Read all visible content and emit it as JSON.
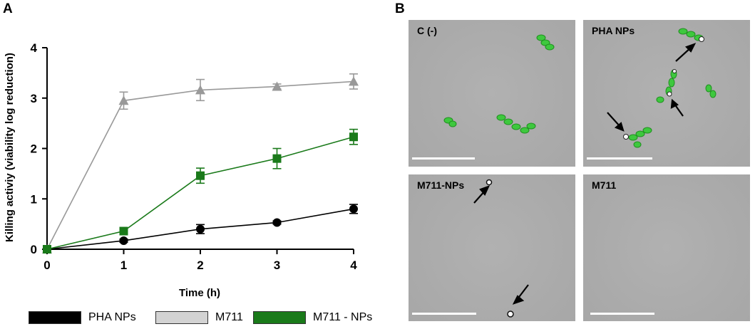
{
  "panels": {
    "a": "A",
    "b": "B"
  },
  "chart_data": {
    "type": "line",
    "xlabel": "Time (h)",
    "ylabel": "Killing activiy (viability log reduction)",
    "xlim": [
      0,
      4
    ],
    "ylim": [
      0,
      4
    ],
    "xticks": [
      "0",
      "1",
      "2",
      "3",
      "4"
    ],
    "yticks": [
      "0",
      "1",
      "2",
      "3",
      "4"
    ],
    "x": [
      0,
      1,
      2,
      3,
      4
    ],
    "grid": false,
    "legend_position": "bottom",
    "series": [
      {
        "name": "PHA NPs",
        "color": "#000000",
        "marker": "circle",
        "values": [
          0,
          0.17,
          0.4,
          0.53,
          0.8
        ],
        "errors": [
          0,
          0.03,
          0.09,
          0.03,
          0.09
        ]
      },
      {
        "name": "M711",
        "color": "#999999",
        "marker": "triangle",
        "values": [
          0,
          2.95,
          3.16,
          3.23,
          3.33
        ],
        "errors": [
          0,
          0.17,
          0.21,
          0.05,
          0.15
        ]
      },
      {
        "name": "M711 - NPs",
        "color": "#1a7a1a",
        "marker": "square",
        "values": [
          0,
          0.36,
          1.46,
          1.8,
          2.23
        ],
        "errors": [
          0,
          0.03,
          0.15,
          0.2,
          0.15
        ]
      }
    ],
    "legend_swatches": [
      "#000000",
      "#d3d3d3",
      "#1a7a1a"
    ]
  },
  "micrographs": [
    {
      "label": "C (-)"
    },
    {
      "label": "PHA NPs"
    },
    {
      "label": "M711-NPs"
    },
    {
      "label": "M711"
    }
  ]
}
